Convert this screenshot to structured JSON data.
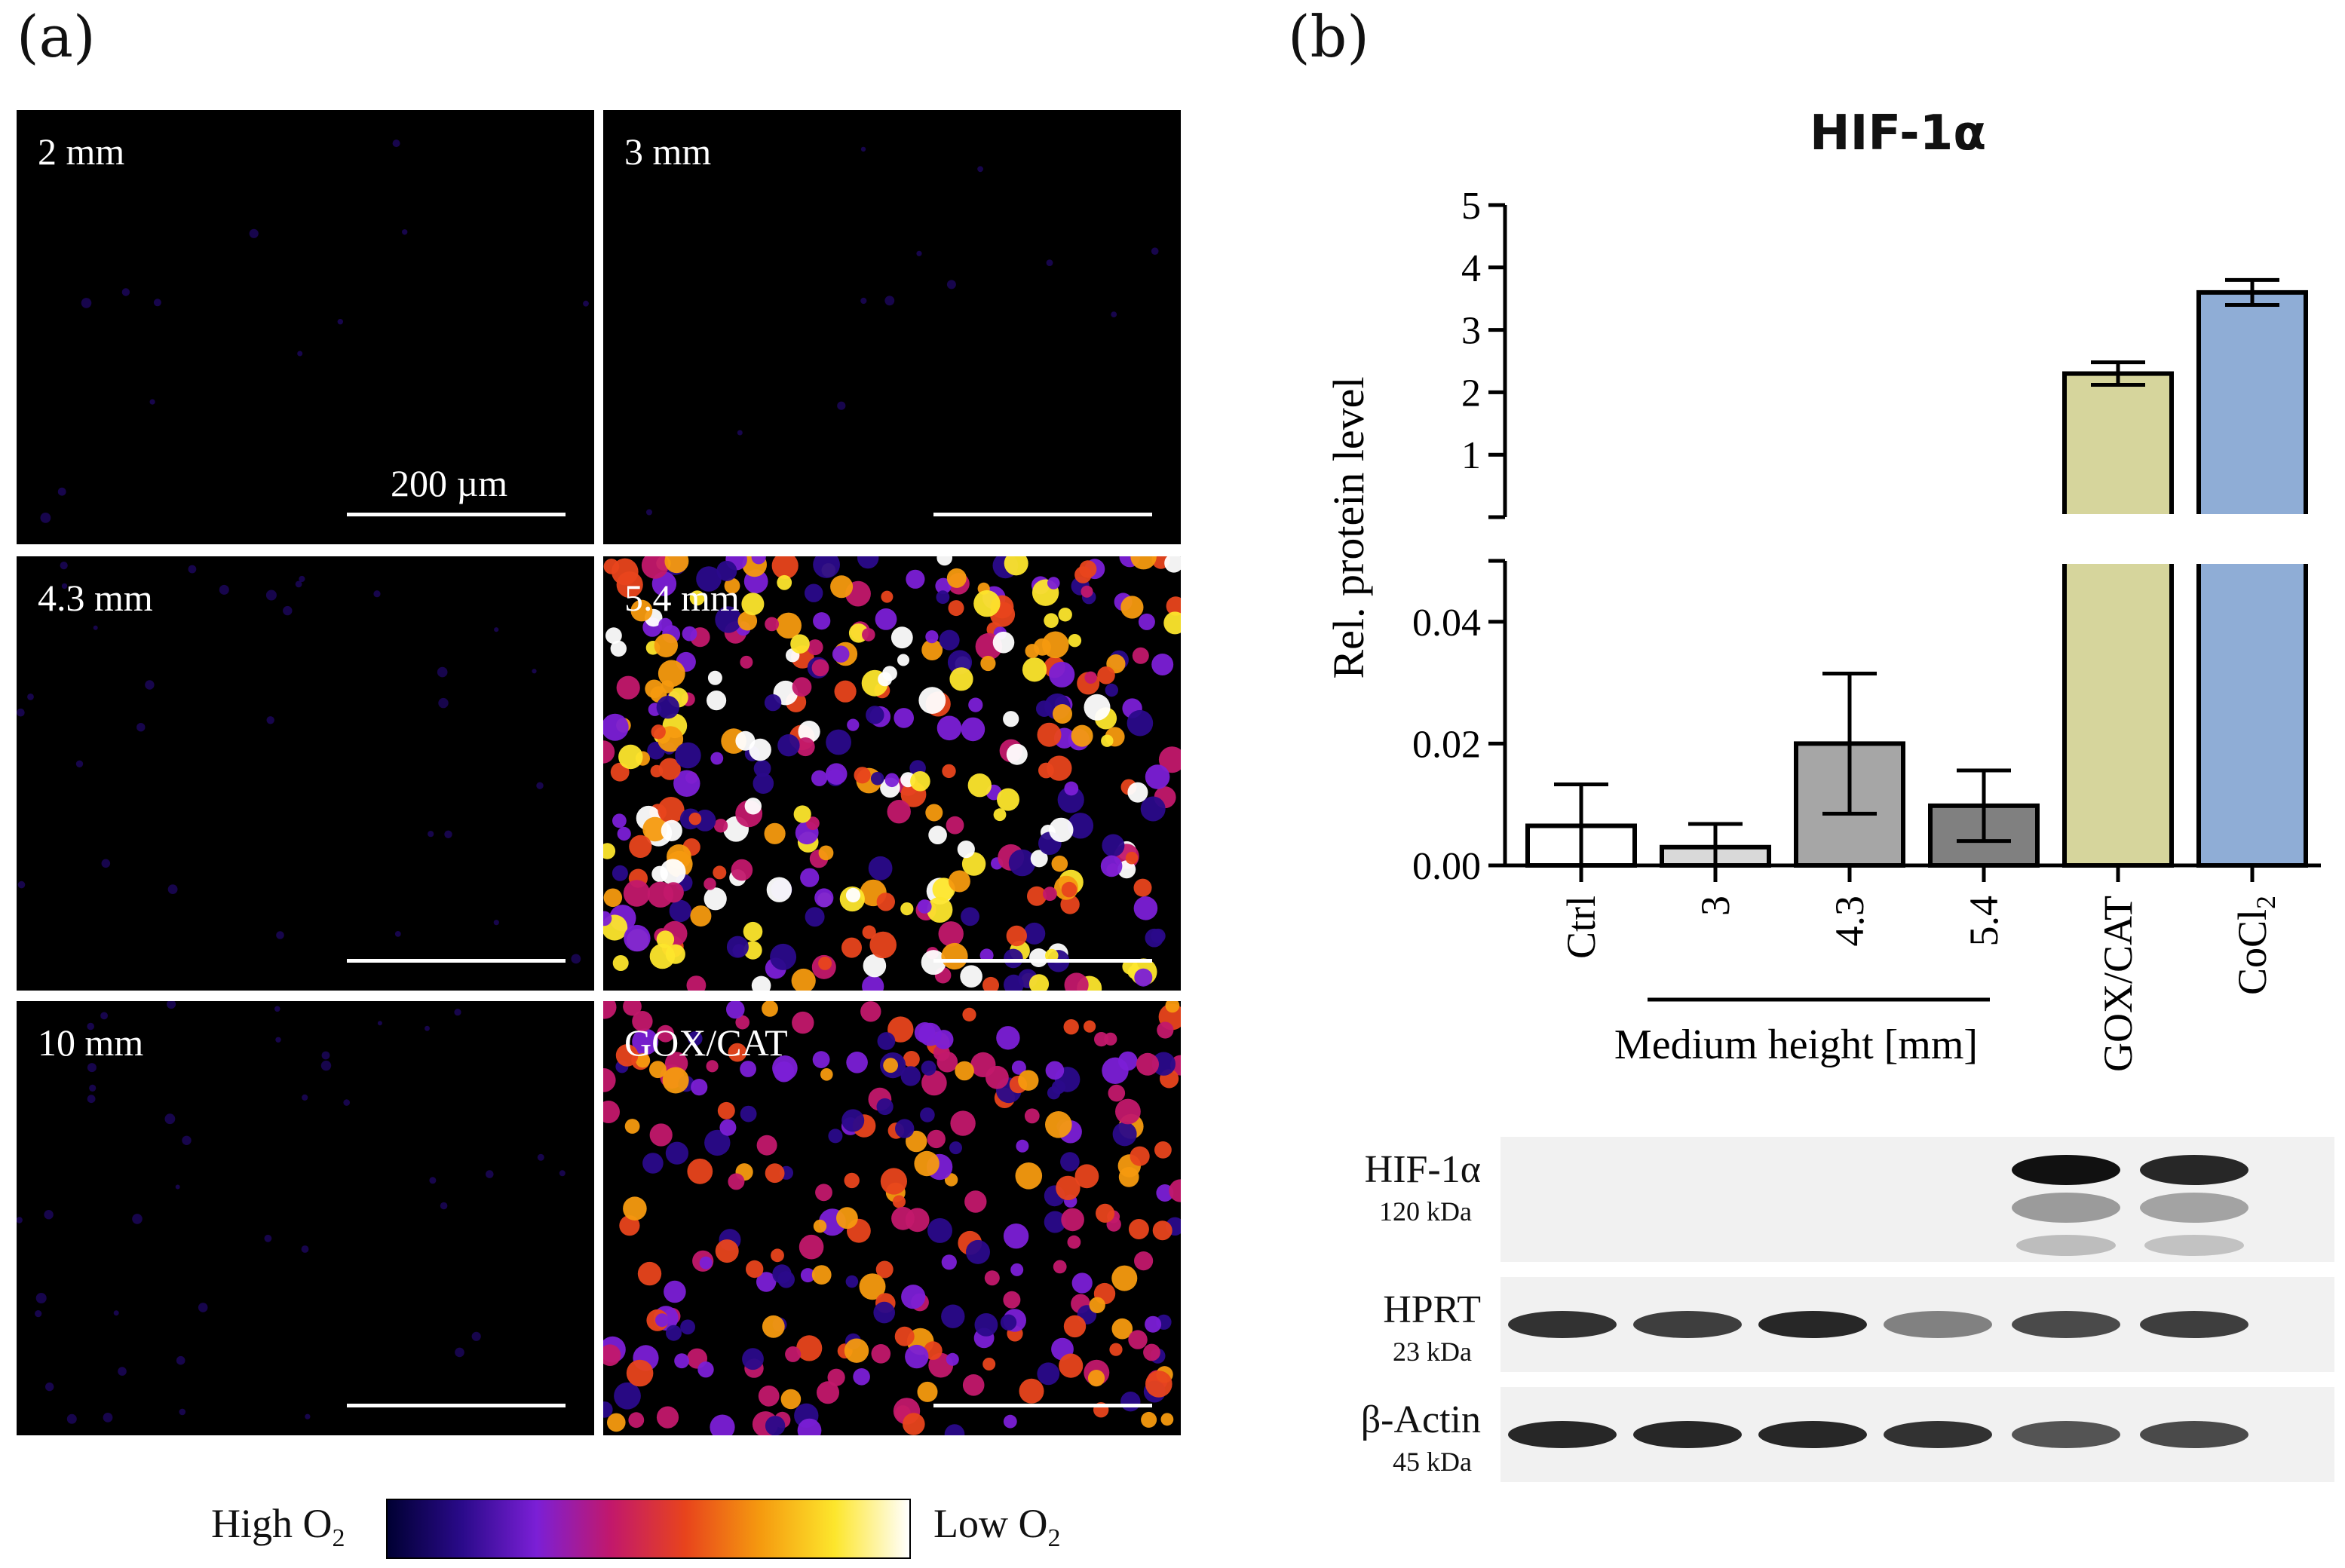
{
  "panel_a": {
    "label": "(a)",
    "tiles": [
      {
        "label": "2 mm",
        "scale_label": "200 µm",
        "signal": 0.0
      },
      {
        "label": "3 mm",
        "scale_label": "",
        "signal": 0.0
      },
      {
        "label": "4.3 mm",
        "scale_label": "",
        "signal": 0.05
      },
      {
        "label": "5.4 mm",
        "scale_label": "",
        "signal": 1.0
      },
      {
        "label": "10 mm",
        "scale_label": "",
        "signal": 0.08
      },
      {
        "label": "GOX/CAT",
        "scale_label": "",
        "signal": 0.7
      }
    ],
    "colorbar": {
      "left_label": "High O",
      "left_sub": "2",
      "right_label": "Low O",
      "right_sub": "2",
      "colors": [
        "#000033",
        "#2a0a8a",
        "#7b1fd6",
        "#c2186b",
        "#e8441c",
        "#f59a0f",
        "#fde62c",
        "#ffffff"
      ]
    }
  },
  "panel_b": {
    "label": "(b)"
  },
  "chart_data": {
    "type": "bar",
    "title": "HIF-1α",
    "ylabel": "Rel. protein level",
    "xlabel": "Medium height [mm]",
    "categories": [
      "Ctrl",
      "3",
      "4.3",
      "5.4",
      "GOX/CAT",
      "CoCl2"
    ],
    "category_display": [
      {
        "text": "Ctrl",
        "sub": ""
      },
      {
        "text": "3",
        "sub": ""
      },
      {
        "text": "4.3",
        "sub": ""
      },
      {
        "text": "5.4",
        "sub": ""
      },
      {
        "text": "GOX/CAT",
        "sub": ""
      },
      {
        "text": "CoCl",
        "sub": "2"
      }
    ],
    "values": [
      0.0065,
      0.003,
      0.02,
      0.0098,
      2.3,
      3.6
    ],
    "errors": [
      0.0068,
      0.0038,
      0.0115,
      0.0058,
      0.18,
      0.2
    ],
    "colors": [
      "#ffffff",
      "#d9d9d9",
      "#a6a6a6",
      "#808080",
      "#d6d59c",
      "#8fadd6"
    ],
    "y_broken": true,
    "ylim_lower": [
      0,
      0.05
    ],
    "ylim_upper": [
      0,
      5
    ],
    "yticks_lower": [
      "0.00",
      "0.02",
      "0.04"
    ],
    "yticks_upper": [
      "1",
      "2",
      "3",
      "4",
      "5"
    ],
    "group_bracket_categories": [
      "3",
      "4.3",
      "5.4"
    ]
  },
  "western_blot": {
    "rows": [
      {
        "name": "HIF-1α",
        "kda": "120 kDa",
        "band_intensity": [
          0,
          0,
          0,
          0,
          1.0,
          0.9
        ]
      },
      {
        "name": "HPRT",
        "kda": "23 kDa",
        "band_intensity": [
          0.85,
          0.8,
          0.9,
          0.5,
          0.75,
          0.8
        ]
      },
      {
        "name": "β-Actin",
        "kda": "45 kDa",
        "band_intensity": [
          0.9,
          0.9,
          0.9,
          0.85,
          0.7,
          0.75
        ]
      }
    ]
  }
}
